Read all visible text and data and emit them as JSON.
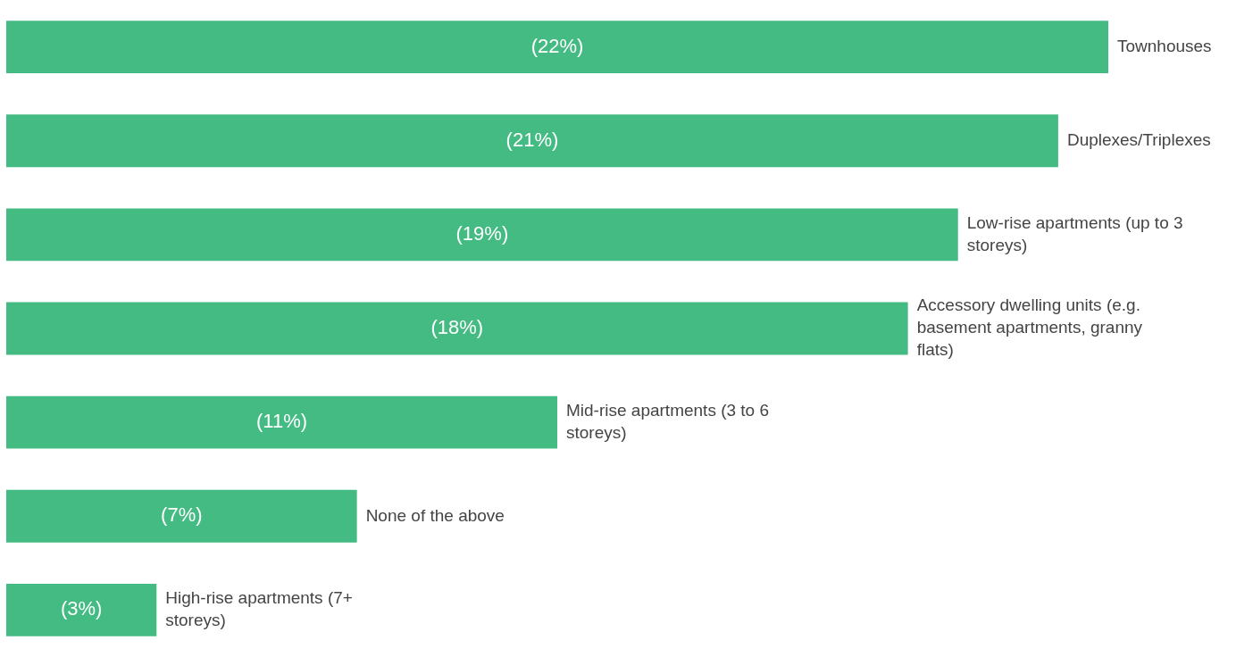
{
  "chart_data": {
    "type": "bar",
    "orientation": "horizontal",
    "categories": [
      "Townhouses",
      "Duplexes/Triplexes",
      "Low-rise apartments (up to 3 storeys)",
      "Accessory dwelling units (e.g. basement apartments, granny flats)",
      "Mid-rise apartments (3 to 6 storeys)",
      "None of the above",
      "High-rise apartments (7+ storeys)"
    ],
    "values": [
      22,
      21,
      19,
      18,
      11,
      7,
      3
    ],
    "value_labels": [
      "(22%)",
      "(21%)",
      "(19%)",
      "(18%)",
      "(11%)",
      "(7%)",
      "(3%)"
    ],
    "color": "#45bb84"
  }
}
